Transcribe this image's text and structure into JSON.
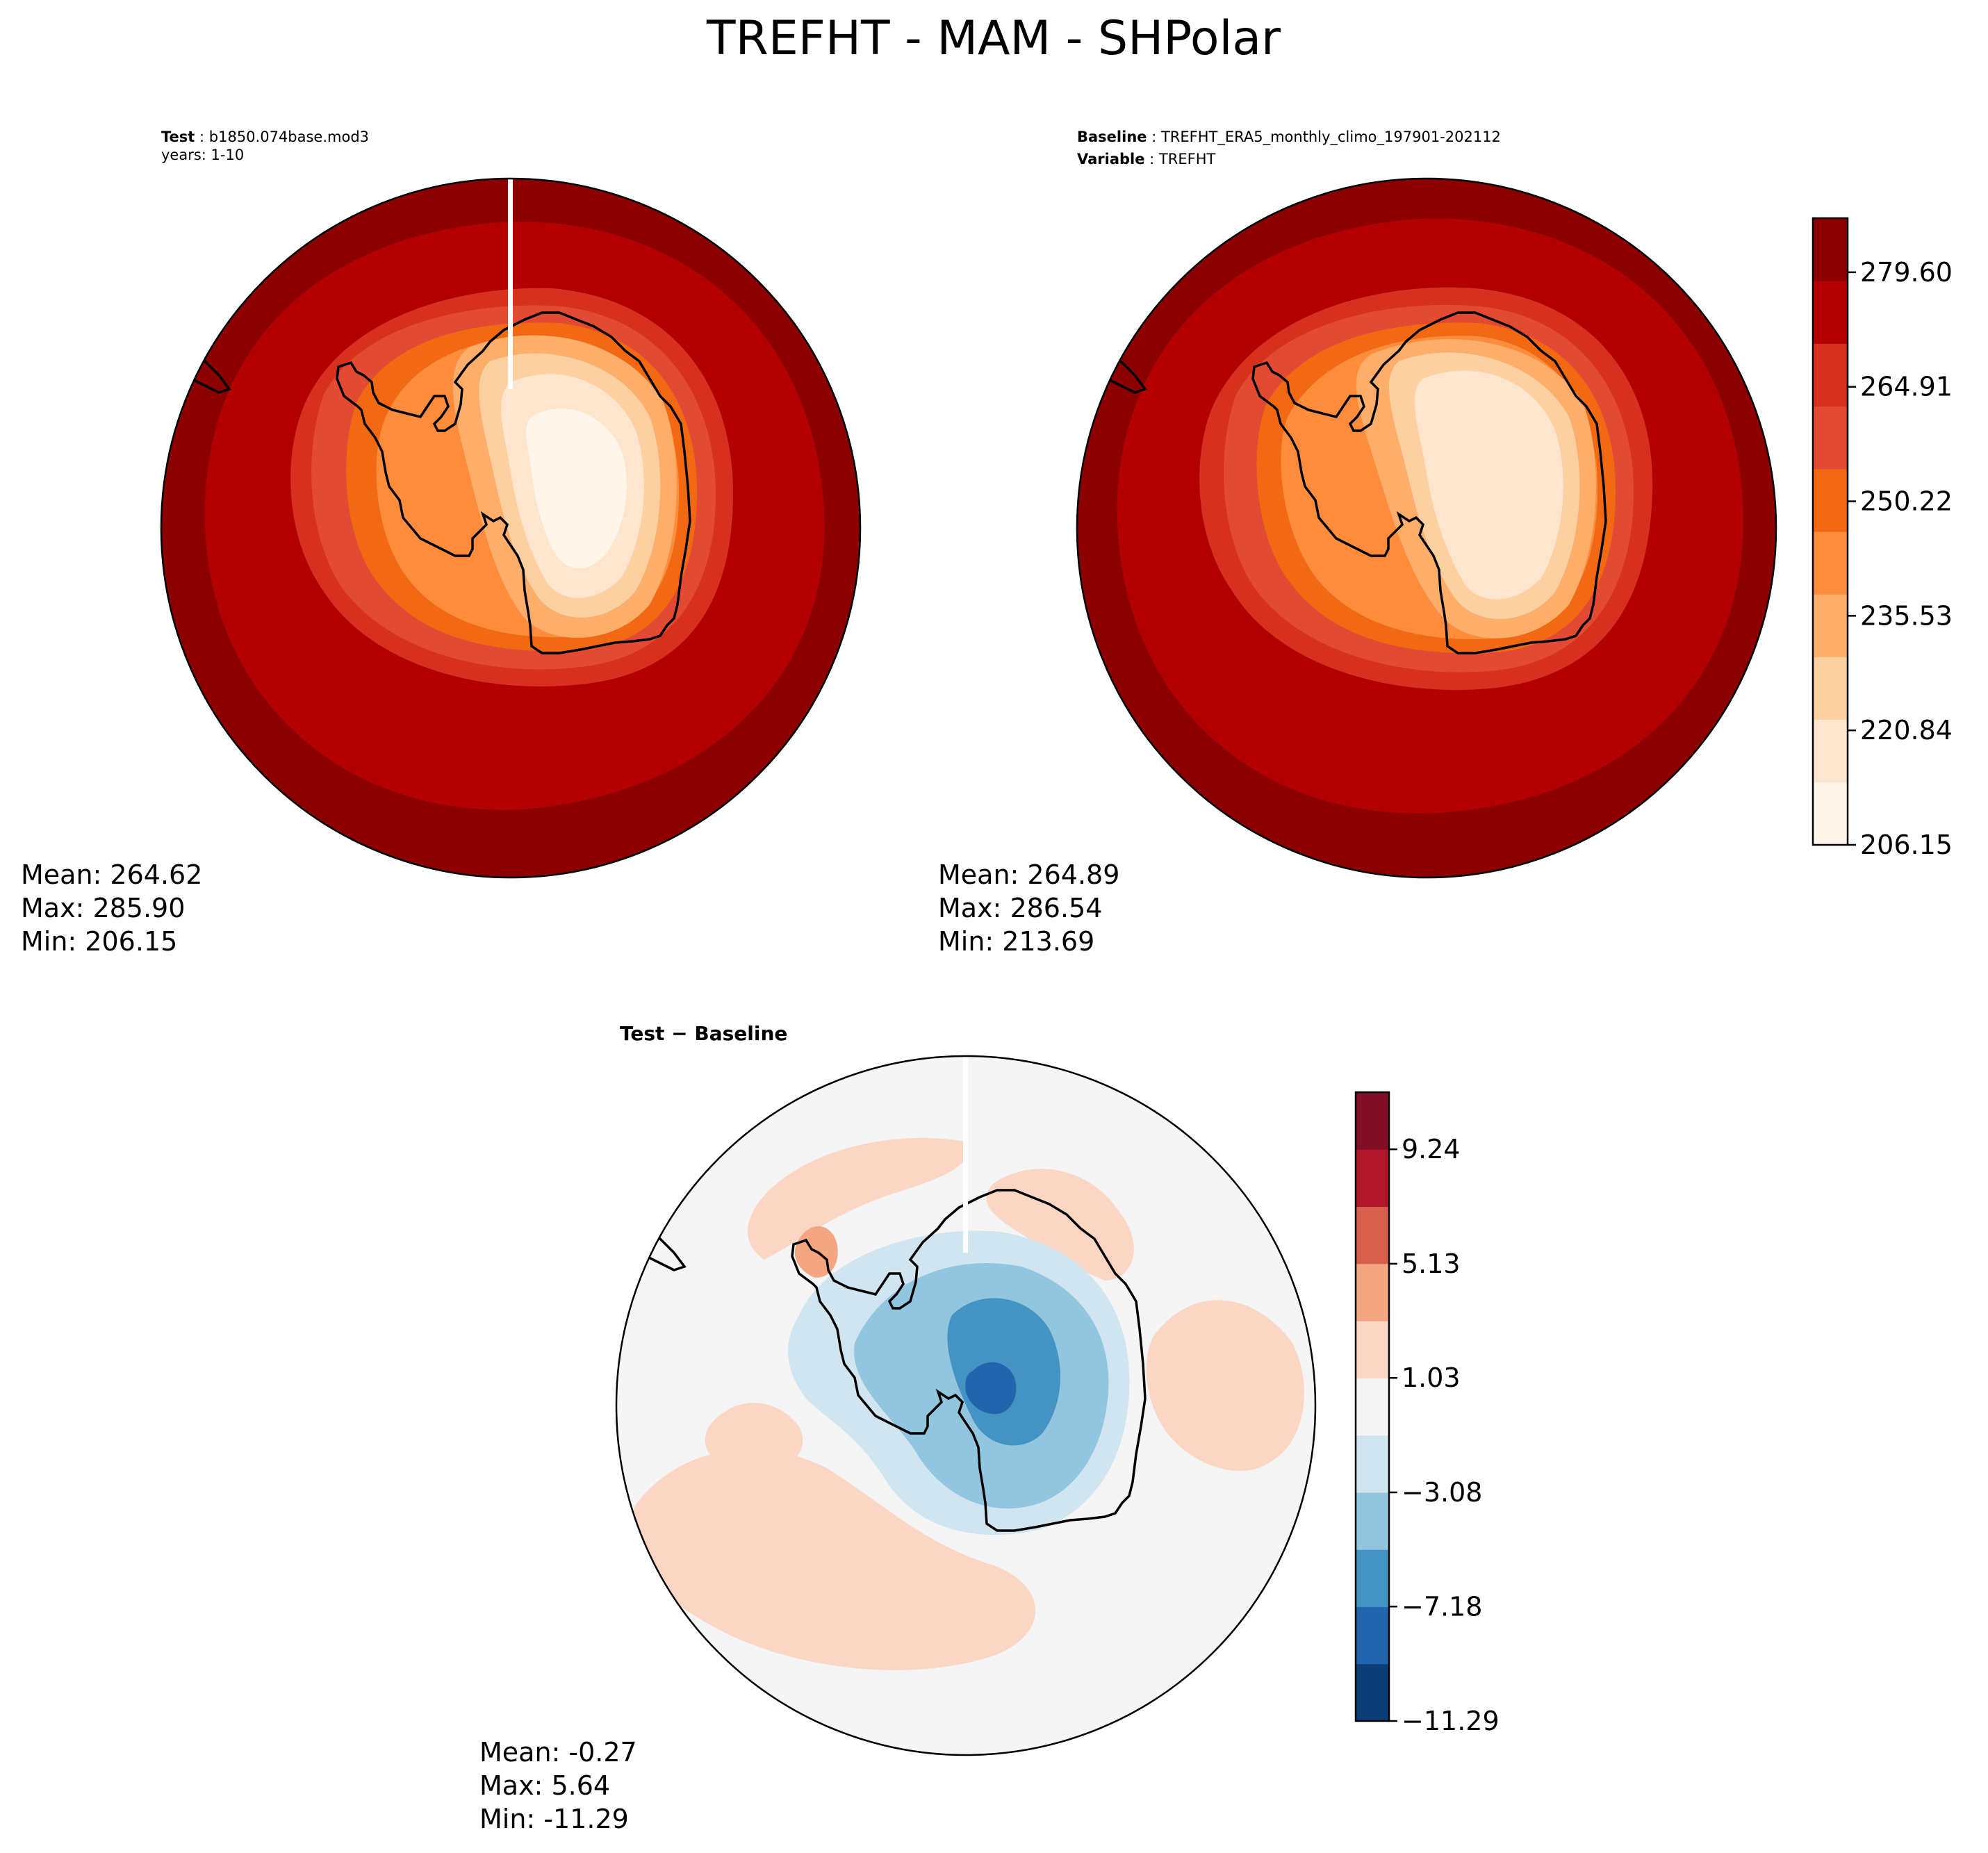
{
  "figure": {
    "title": "TREFHT - MAM - SHPolar"
  },
  "colors": {
    "test_levels": [
      "#fff5eb",
      "#fee6ce",
      "#fdd0a2",
      "#fdae6b",
      "#fd8d3c",
      "#f16913",
      "#e34a33",
      "#d7301f",
      "#b30000",
      "#8b0000"
    ],
    "diff_levels": [
      "#0b3d78",
      "#2166ac",
      "#4393c3",
      "#92c5de",
      "#d1e5f0",
      "#f5f5f5",
      "#fbd6c4",
      "#f4a582",
      "#d6604d",
      "#b2182b",
      "#810f25"
    ],
    "coastline": "#000000"
  },
  "panels": {
    "test": {
      "label_bold": "Test",
      "label_value": "b1850.074base.mod3",
      "label_line2": "years: 1-10",
      "stats": {
        "mean": "Mean: 264.62",
        "max": "Max: 285.90",
        "min": "Min: 206.15"
      }
    },
    "baseline": {
      "label_bold": "Baseline",
      "label_value": "TREFHT_ERA5_monthly_climo_197901-202112",
      "label2_bold": "Variable",
      "label2_value": "TREFHT",
      "stats": {
        "mean": "Mean: 264.89",
        "max": "Max: 286.54",
        "min": "Min: 213.69"
      }
    },
    "diff": {
      "label_bold": "Test − Baseline",
      "stats": {
        "mean": "Mean: -0.27",
        "max": "Max:  5.64",
        "min": "Min: -11.29"
      }
    }
  },
  "chart_data": [
    {
      "type": "heatmap",
      "panel": "test",
      "projection": "south-polar-stereographic",
      "variable": "TREFHT",
      "stats": {
        "mean": 264.62,
        "max": 285.9,
        "min": 206.15
      }
    },
    {
      "type": "heatmap",
      "panel": "baseline",
      "projection": "south-polar-stereographic",
      "variable": "TREFHT",
      "stats": {
        "mean": 264.89,
        "max": 286.54,
        "min": 213.69
      },
      "colorbar": {
        "range": [
          206.15,
          286.54
        ],
        "ticks": [
          206.15,
          220.84,
          235.53,
          250.22,
          264.91,
          279.6
        ],
        "tick_labels": [
          "206.15",
          "220.84",
          "235.53",
          "250.22",
          "264.91",
          "279.60"
        ],
        "levels": 11
      }
    },
    {
      "type": "heatmap",
      "panel": "diff",
      "projection": "south-polar-stereographic",
      "stats": {
        "mean": -0.27,
        "max": 5.64,
        "min": -11.29
      },
      "colorbar": {
        "range": [
          -11.29,
          11.29
        ],
        "ticks": [
          -11.29,
          -7.18,
          -3.08,
          1.03,
          5.13,
          9.24
        ],
        "tick_labels": [
          "−11.29",
          "−7.18",
          "−3.08",
          "1.03",
          "5.13",
          "9.24"
        ],
        "levels": 11
      }
    }
  ]
}
